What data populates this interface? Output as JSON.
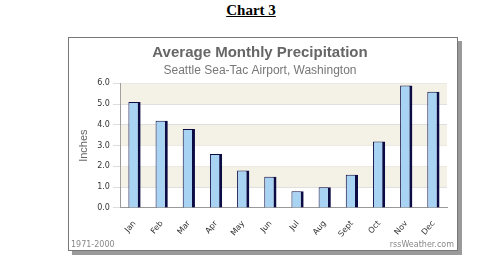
{
  "header": "Chart 3",
  "chart_data": {
    "type": "bar",
    "title": "Average Monthly Precipitation",
    "subtitle": "Seattle Sea-Tac Airport, Washington",
    "ylabel": "Inches",
    "annotations": [
      "1971-2000",
      "rssWeather.com"
    ],
    "categories": [
      "Jan",
      "Feb",
      "Mar",
      "Apr",
      "May",
      "Jun",
      "Jul",
      "Aug",
      "Sept",
      "Oct",
      "Nov",
      "Dec"
    ],
    "values": [
      5.1,
      4.2,
      3.8,
      2.6,
      1.8,
      1.5,
      0.8,
      1.0,
      1.6,
      3.2,
      5.9,
      5.6
    ],
    "color": "#a9d3f2",
    "ylim": [
      0,
      6
    ],
    "yticks": [
      {
        "value": 0,
        "label": "0.0"
      },
      {
        "value": 1,
        "label": "1.0"
      },
      {
        "value": 2,
        "label": "2.0"
      },
      {
        "value": 3,
        "label": "3.0"
      },
      {
        "value": 4,
        "label": "4.0"
      },
      {
        "value": 5,
        "label": "5.0"
      },
      {
        "value": 6,
        "label": "6.0"
      }
    ],
    "grid": true
  }
}
